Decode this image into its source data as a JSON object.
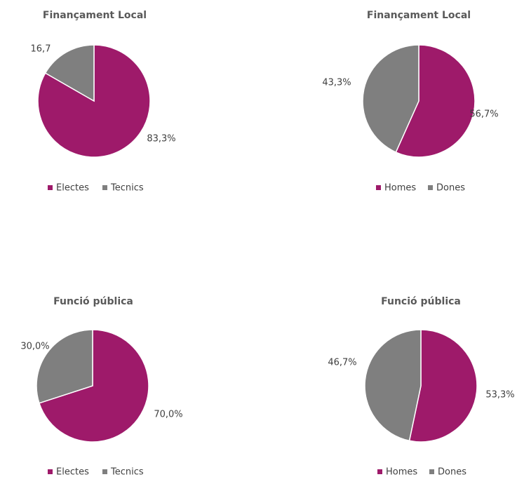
{
  "chart_data": [
    {
      "type": "pie",
      "title": "Finançament Local",
      "categories": [
        "Electes",
        "Tecnics"
      ],
      "values": [
        83.3,
        16.7
      ],
      "value_labels": [
        "83,3%",
        "16,7"
      ],
      "colors": [
        "#9e1a6a",
        "#7f7f7f"
      ],
      "legend": "bottom"
    },
    {
      "type": "pie",
      "title": "Finançament Local",
      "categories": [
        "Homes",
        "Dones"
      ],
      "values": [
        56.7,
        43.3
      ],
      "value_labels": [
        "56,7%",
        "43,3%"
      ],
      "colors": [
        "#9e1a6a",
        "#7f7f7f"
      ],
      "legend": "bottom"
    },
    {
      "type": "pie",
      "title": "Funció pública",
      "categories": [
        "Electes",
        "Tecnics"
      ],
      "values": [
        70.0,
        30.0
      ],
      "value_labels": [
        "70,0%",
        "30,0%"
      ],
      "colors": [
        "#9e1a6a",
        "#7f7f7f"
      ],
      "legend": "bottom"
    },
    {
      "type": "pie",
      "title": "Funció pública",
      "categories": [
        "Homes",
        "Dones"
      ],
      "values": [
        53.3,
        46.7
      ],
      "value_labels": [
        "53,3%",
        "46,7%"
      ],
      "colors": [
        "#9e1a6a",
        "#7f7f7f"
      ],
      "legend": "bottom"
    }
  ]
}
